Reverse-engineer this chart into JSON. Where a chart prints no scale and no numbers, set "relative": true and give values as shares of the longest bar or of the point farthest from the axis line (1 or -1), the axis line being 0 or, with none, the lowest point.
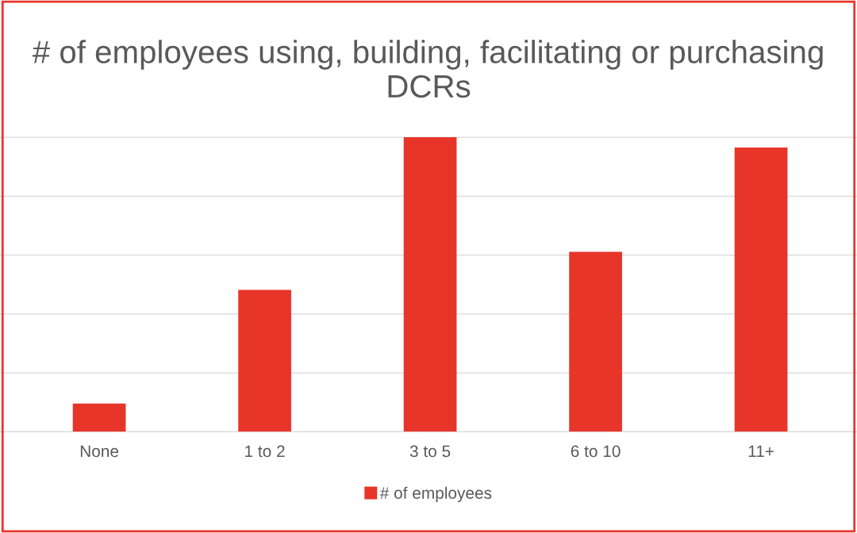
{
  "chart_data": {
    "type": "bar",
    "title": "# of employees using, building, facilitating or purchasing DCRs",
    "categories": [
      "None",
      "1 to 2",
      "3 to 5",
      "6 to 10",
      "11+"
    ],
    "series": [
      {
        "name": "# of employees",
        "color": "#e8352a",
        "values": [
          0.096,
          0.482,
          1,
          0.611,
          0.965
        ]
      }
    ],
    "relative": true,
    "grid": "y",
    "legend": "bottom"
  }
}
